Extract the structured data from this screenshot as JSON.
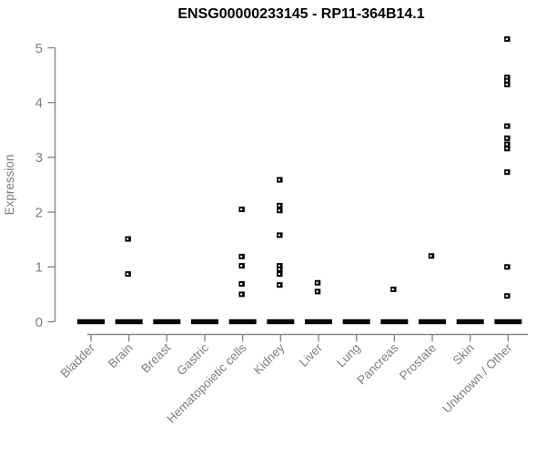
{
  "chart_data": {
    "type": "scatter",
    "title": "ENSG00000233145 - RP11-364B14.1",
    "ylabel": "Expression",
    "xlabel": "",
    "ylim": [
      0,
      5
    ],
    "yticks": [
      0,
      1,
      2,
      3,
      4,
      5
    ],
    "grid": false,
    "legend": "none",
    "marker": "small-black-square-with-white-center",
    "zero_values_note": "every category shows a dense cluster of points at 0 rendered as a thick black dash",
    "colors": {
      "points": "#000000",
      "axis": "#888888",
      "labels": "#7e7e7e",
      "title": "#000000",
      "background": "#ffffff"
    },
    "categories": [
      "Bladder",
      "Brain",
      "Breast",
      "Gastric",
      "Hematopoietic cells",
      "Kidney",
      "Liver",
      "Lung",
      "Pancreas",
      "Prostate",
      "Skin",
      "Unknown / Other"
    ],
    "series": [
      {
        "name": "Bladder",
        "zero_cluster": true,
        "points": []
      },
      {
        "name": "Brain",
        "zero_cluster": true,
        "points": [
          1.51,
          0.87
        ]
      },
      {
        "name": "Breast",
        "zero_cluster": true,
        "points": []
      },
      {
        "name": "Gastric",
        "zero_cluster": true,
        "points": []
      },
      {
        "name": "Hematopoietic cells",
        "zero_cluster": true,
        "points": [
          2.05,
          1.19,
          1.02,
          0.69,
          0.5
        ]
      },
      {
        "name": "Kidney",
        "zero_cluster": true,
        "points": [
          2.59,
          2.12,
          2.03,
          1.58,
          1.02,
          0.96,
          0.87,
          0.67
        ]
      },
      {
        "name": "Liver",
        "zero_cluster": true,
        "points": [
          0.71,
          0.55
        ]
      },
      {
        "name": "Lung",
        "zero_cluster": true,
        "points": []
      },
      {
        "name": "Pancreas",
        "zero_cluster": true,
        "points": [
          0.59
        ]
      },
      {
        "name": "Prostate",
        "zero_cluster": true,
        "points": [
          1.2
        ]
      },
      {
        "name": "Skin",
        "zero_cluster": true,
        "points": []
      },
      {
        "name": "Unknown / Other",
        "zero_cluster": true,
        "points": [
          5.16,
          4.46,
          4.4,
          4.33,
          3.57,
          3.35,
          3.24,
          3.16,
          2.73,
          1.0,
          0.47
        ]
      }
    ]
  }
}
